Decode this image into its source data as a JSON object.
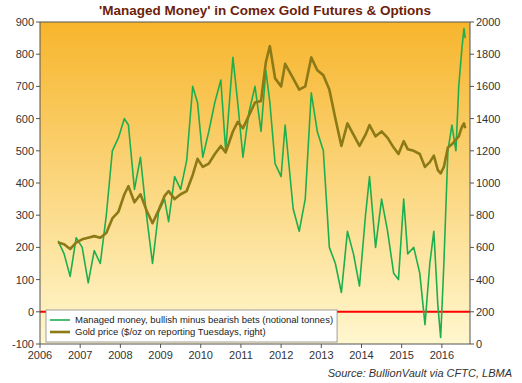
{
  "chart_data": {
    "type": "line",
    "title": "'Managed Money' in Comex Gold Futures & Options",
    "source": "Source: BullionVault via CFTC, LBMA",
    "x": [
      2006.45,
      2006.6,
      2006.75,
      2006.9,
      2007.05,
      2007.2,
      2007.35,
      2007.5,
      2007.65,
      2007.8,
      2007.95,
      2008.1,
      2008.2,
      2008.35,
      2008.5,
      2008.65,
      2008.8,
      2008.95,
      2009.1,
      2009.2,
      2009.35,
      2009.5,
      2009.65,
      2009.8,
      2009.92,
      2010.05,
      2010.2,
      2010.35,
      2010.5,
      2010.62,
      2010.8,
      2010.92,
      2011.05,
      2011.2,
      2011.35,
      2011.5,
      2011.62,
      2011.72,
      2011.85,
      2012.0,
      2012.1,
      2012.3,
      2012.45,
      2012.6,
      2012.75,
      2012.9,
      2013.05,
      2013.2,
      2013.35,
      2013.5,
      2013.65,
      2013.8,
      2013.95,
      2014.1,
      2014.2,
      2014.35,
      2014.5,
      2014.65,
      2014.8,
      2014.92,
      2015.05,
      2015.15,
      2015.3,
      2015.45,
      2015.58,
      2015.7,
      2015.8,
      2015.9,
      2015.97,
      2016.05,
      2016.15,
      2016.25,
      2016.35,
      2016.42,
      2016.5,
      2016.55,
      2016.58
    ],
    "series": [
      {
        "name": "Managed money, bullish minus bearish bets (notional tonnes)",
        "color": "#1fae4e",
        "axis": "y",
        "values": [
          220,
          180,
          110,
          230,
          200,
          90,
          190,
          150,
          300,
          500,
          540,
          600,
          580,
          380,
          480,
          300,
          150,
          310,
          350,
          280,
          420,
          380,
          470,
          700,
          650,
          480,
          560,
          650,
          720,
          500,
          790,
          650,
          480,
          620,
          700,
          560,
          750,
          650,
          460,
          420,
          580,
          320,
          250,
          350,
          680,
          560,
          500,
          200,
          150,
          60,
          250,
          180,
          80,
          300,
          420,
          200,
          350,
          250,
          120,
          100,
          350,
          180,
          200,
          120,
          -40,
          150,
          250,
          20,
          -80,
          150,
          500,
          580,
          500,
          700,
          820,
          880,
          850
        ]
      },
      {
        "name": "Gold price ($/oz on reporting Tuesdays, right)",
        "color": "#8c7a16",
        "axis": "y2",
        "values": [
          630,
          620,
          590,
          630,
          650,
          660,
          670,
          660,
          690,
          780,
          820,
          930,
          980,
          880,
          930,
          830,
          750,
          830,
          920,
          950,
          900,
          930,
          950,
          1050,
          1150,
          1100,
          1120,
          1180,
          1230,
          1190,
          1320,
          1380,
          1340,
          1420,
          1500,
          1510,
          1750,
          1850,
          1650,
          1600,
          1740,
          1650,
          1580,
          1600,
          1780,
          1700,
          1670,
          1580,
          1400,
          1230,
          1370,
          1300,
          1230,
          1300,
          1360,
          1290,
          1320,
          1280,
          1220,
          1180,
          1260,
          1210,
          1200,
          1180,
          1100,
          1130,
          1170,
          1080,
          1060,
          1100,
          1220,
          1240,
          1270,
          1290,
          1350,
          1370,
          1340
        ]
      }
    ],
    "xlim": [
      2006,
      2016.7
    ],
    "xticks": [
      2006,
      2007,
      2008,
      2009,
      2010,
      2011,
      2012,
      2013,
      2014,
      2015,
      2016
    ],
    "ylim": [
      -100,
      900
    ],
    "yticks": [
      -100,
      0,
      100,
      200,
      300,
      400,
      500,
      600,
      700,
      800,
      900
    ],
    "y2lim": [
      0,
      2000
    ],
    "y2ticks": [
      0,
      200,
      400,
      600,
      800,
      1000,
      1200,
      1400,
      1600,
      1800,
      2000
    ],
    "reference_line": {
      "value": 0,
      "color": "#ff0000"
    },
    "grid": false,
    "legend": "lower-left"
  }
}
